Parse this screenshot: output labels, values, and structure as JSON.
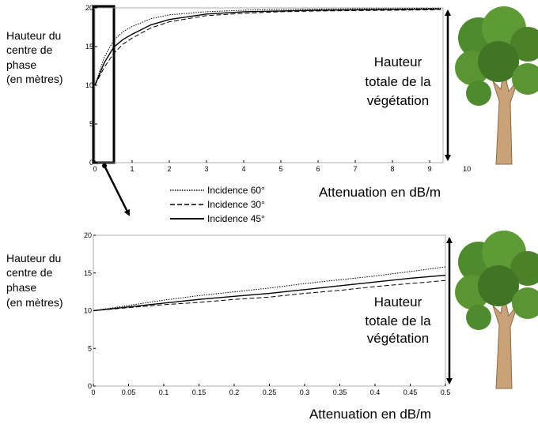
{
  "chart_data": [
    {
      "type": "line",
      "ylabel": [
        "Hauteur du",
        "centre de",
        "phase",
        "(en mètres)"
      ],
      "annotation": [
        "Hauteur",
        "totale de la",
        "végétation"
      ],
      "xlabel": "Attenuation en dB/m",
      "x": [
        0,
        0.25,
        0.5,
        0.75,
        1,
        1.5,
        2,
        3,
        4,
        5,
        6,
        7,
        8,
        9,
        9.3
      ],
      "series": [
        {
          "name": "Incidence 60°",
          "color": "#000000",
          "dash": "dotted",
          "values": [
            10,
            13.6,
            15.8,
            16.9,
            17.6,
            18.6,
            19.1,
            19.5,
            19.7,
            19.8,
            19.85,
            19.9,
            19.9,
            19.95,
            19.95
          ]
        },
        {
          "name": "Incidence 30°",
          "color": "#000000",
          "dash": "dashed",
          "values": [
            10,
            12.3,
            14.1,
            15.3,
            16.1,
            17.4,
            18.2,
            19.0,
            19.3,
            19.5,
            19.6,
            19.65,
            19.7,
            19.75,
            19.8
          ]
        },
        {
          "name": "Incidence 45°",
          "color": "#000000",
          "dash": "solid",
          "values": [
            10,
            12.9,
            14.9,
            15.9,
            16.6,
            17.8,
            18.5,
            19.2,
            19.5,
            19.6,
            19.7,
            19.75,
            19.8,
            19.85,
            19.85
          ]
        }
      ],
      "xlim": [
        0,
        9.36
      ],
      "xticks": [
        0,
        1,
        2,
        3,
        4,
        5,
        6,
        7,
        8,
        9,
        10
      ],
      "ylim": [
        0,
        20
      ],
      "yticks": [
        0,
        5,
        10,
        15,
        20
      ]
    },
    {
      "type": "line",
      "ylabel": [
        "Hauteur du",
        "centre de",
        "phase",
        "(en mètres)"
      ],
      "annotation": [
        "Hauteur",
        "totale de la",
        "végétation"
      ],
      "xlabel": "Attenuation en dB/m",
      "x": [
        0,
        0.05,
        0.1,
        0.15,
        0.2,
        0.25,
        0.3,
        0.35,
        0.4,
        0.45,
        0.5
      ],
      "series": [
        {
          "color": "#000000",
          "dash": "dotted",
          "values": [
            10,
            10.7,
            11.4,
            12.0,
            12.5,
            13.0,
            13.6,
            14.1,
            14.6,
            15.2,
            15.8
          ]
        },
        {
          "color": "#000000",
          "dash": "dashed",
          "values": [
            10,
            10.4,
            10.8,
            11.1,
            11.5,
            11.8,
            12.3,
            12.7,
            13.2,
            13.6,
            14.0
          ]
        },
        {
          "color": "#000000",
          "dash": "solid",
          "values": [
            10,
            10.5,
            11.0,
            11.5,
            11.9,
            12.3,
            12.8,
            13.3,
            13.8,
            14.3,
            14.7
          ]
        }
      ],
      "xlim": [
        0,
        0.5
      ],
      "xticks": [
        0,
        0.05,
        0.1,
        0.15,
        0.2,
        0.25,
        0.3,
        0.35,
        0.4,
        0.45,
        0.5
      ],
      "ylim": [
        0,
        20
      ],
      "yticks": [
        0,
        5,
        10,
        15,
        20
      ]
    }
  ]
}
